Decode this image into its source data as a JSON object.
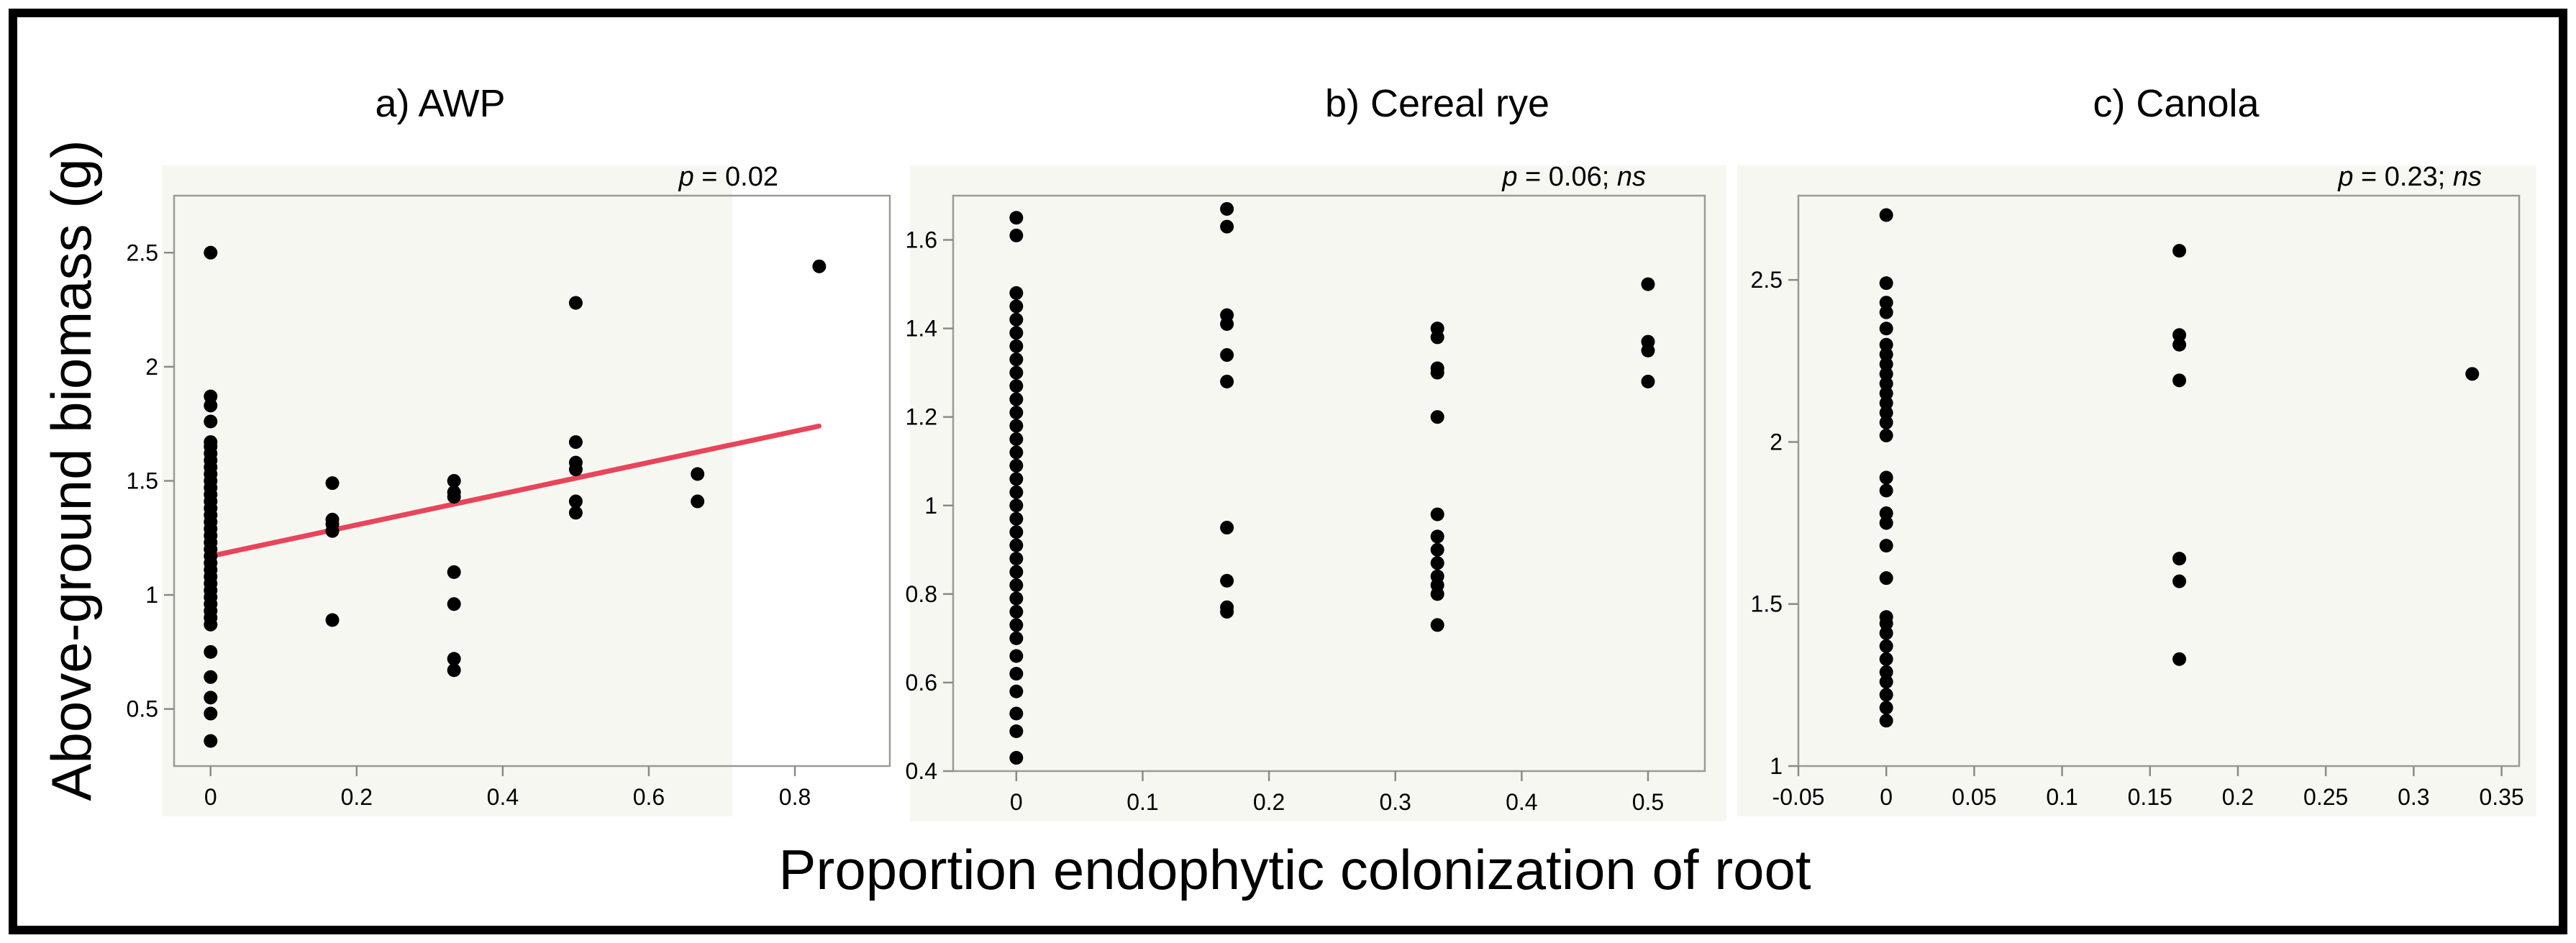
{
  "figure": {
    "ylabel": "Above-ground biomass (g)",
    "xlabel": "Proportion endophytic colonization of root"
  },
  "chart_data": [
    {
      "type": "scatter",
      "title": "a) AWP",
      "pvalue": {
        "p": "p",
        "rest": " = 0.02"
      },
      "xlim": [
        -0.05,
        0.93
      ],
      "ylim": [
        0.25,
        2.75
      ],
      "xticks": [
        0,
        0.2,
        0.4,
        0.6,
        0.8
      ],
      "yticks": [
        0.5,
        1,
        1.5,
        2,
        2.5
      ],
      "xticklabels": [
        "0",
        "0.2",
        "0.4",
        "0.6",
        "0.8"
      ],
      "yticklabels": [
        "0.5",
        "1",
        "1.5",
        "2",
        "2.5"
      ],
      "regression": {
        "x": [
          0,
          0.833
        ],
        "y": [
          1.17,
          1.74
        ],
        "color": "#e8455a"
      },
      "points": [
        [
          0,
          2.5
        ],
        [
          0,
          1.87
        ],
        [
          0,
          1.83
        ],
        [
          0,
          1.76
        ],
        [
          0,
          1.67
        ],
        [
          0,
          1.65
        ],
        [
          0,
          1.62
        ],
        [
          0,
          1.59
        ],
        [
          0,
          1.56
        ],
        [
          0,
          1.53
        ],
        [
          0,
          1.5
        ],
        [
          0,
          1.47
        ],
        [
          0,
          1.44
        ],
        [
          0,
          1.41
        ],
        [
          0,
          1.38
        ],
        [
          0,
          1.35
        ],
        [
          0,
          1.32
        ],
        [
          0,
          1.29
        ],
        [
          0,
          1.26
        ],
        [
          0,
          1.23
        ],
        [
          0,
          1.2
        ],
        [
          0,
          1.17
        ],
        [
          0,
          1.14
        ],
        [
          0,
          1.11
        ],
        [
          0,
          1.08
        ],
        [
          0,
          1.05
        ],
        [
          0,
          1.02
        ],
        [
          0,
          0.99
        ],
        [
          0,
          0.96
        ],
        [
          0,
          0.93
        ],
        [
          0,
          0.9
        ],
        [
          0,
          0.87
        ],
        [
          0,
          0.75
        ],
        [
          0,
          0.64
        ],
        [
          0,
          0.55
        ],
        [
          0,
          0.48
        ],
        [
          0,
          0.36
        ],
        [
          0.1667,
          1.49
        ],
        [
          0.1667,
          1.33
        ],
        [
          0.1667,
          1.31
        ],
        [
          0.1667,
          1.28
        ],
        [
          0.1667,
          0.89
        ],
        [
          0.3333,
          1.5
        ],
        [
          0.3333,
          1.45
        ],
        [
          0.3333,
          1.43
        ],
        [
          0.3333,
          1.1
        ],
        [
          0.3333,
          0.96
        ],
        [
          0.3333,
          0.72
        ],
        [
          0.3333,
          0.67
        ],
        [
          0.5,
          2.28
        ],
        [
          0.5,
          1.67
        ],
        [
          0.5,
          1.58
        ],
        [
          0.5,
          1.55
        ],
        [
          0.5,
          1.41
        ],
        [
          0.5,
          1.36
        ],
        [
          0.6667,
          1.53
        ],
        [
          0.6667,
          1.41
        ],
        [
          0.8333,
          2.44
        ]
      ]
    },
    {
      "type": "scatter",
      "title": "b) Cereal rye",
      "pvalue": {
        "p": "p",
        "rest": " = 0.06; ",
        "ns": "ns"
      },
      "xlim": [
        -0.05,
        0.545
      ],
      "ylim": [
        0.4,
        1.7
      ],
      "xticks": [
        0,
        0.1,
        0.2,
        0.3,
        0.4,
        0.5
      ],
      "yticks": [
        0.4,
        0.6,
        0.8,
        1,
        1.2,
        1.4,
        1.6
      ],
      "xticklabels": [
        "0",
        "0.1",
        "0.2",
        "0.3",
        "0.4",
        "0.5"
      ],
      "yticklabels": [
        "0.4",
        "0.6",
        "0.8",
        "1",
        "1.2",
        "1.4",
        "1.6"
      ],
      "points": [
        [
          0,
          1.65
        ],
        [
          0,
          1.61
        ],
        [
          0,
          1.48
        ],
        [
          0,
          1.45
        ],
        [
          0,
          1.42
        ],
        [
          0,
          1.39
        ],
        [
          0,
          1.36
        ],
        [
          0,
          1.33
        ],
        [
          0,
          1.3
        ],
        [
          0,
          1.27
        ],
        [
          0,
          1.24
        ],
        [
          0,
          1.21
        ],
        [
          0,
          1.18
        ],
        [
          0,
          1.15
        ],
        [
          0,
          1.12
        ],
        [
          0,
          1.09
        ],
        [
          0,
          1.06
        ],
        [
          0,
          1.03
        ],
        [
          0,
          1.0
        ],
        [
          0,
          0.97
        ],
        [
          0,
          0.94
        ],
        [
          0,
          0.91
        ],
        [
          0,
          0.88
        ],
        [
          0,
          0.85
        ],
        [
          0,
          0.82
        ],
        [
          0,
          0.79
        ],
        [
          0,
          0.76
        ],
        [
          0,
          0.73
        ],
        [
          0,
          0.7
        ],
        [
          0,
          0.66
        ],
        [
          0,
          0.62
        ],
        [
          0,
          0.58
        ],
        [
          0,
          0.53
        ],
        [
          0,
          0.49
        ],
        [
          0,
          0.43
        ],
        [
          0.1667,
          1.67
        ],
        [
          0.1667,
          1.63
        ],
        [
          0.1667,
          1.43
        ],
        [
          0.1667,
          1.41
        ],
        [
          0.1667,
          1.34
        ],
        [
          0.1667,
          1.28
        ],
        [
          0.1667,
          0.95
        ],
        [
          0.1667,
          0.83
        ],
        [
          0.1667,
          0.77
        ],
        [
          0.1667,
          0.76
        ],
        [
          0.3333,
          1.4
        ],
        [
          0.3333,
          1.38
        ],
        [
          0.3333,
          1.31
        ],
        [
          0.3333,
          1.3
        ],
        [
          0.3333,
          1.2
        ],
        [
          0.3333,
          0.98
        ],
        [
          0.3333,
          0.93
        ],
        [
          0.3333,
          0.9
        ],
        [
          0.3333,
          0.87
        ],
        [
          0.3333,
          0.84
        ],
        [
          0.3333,
          0.82
        ],
        [
          0.3333,
          0.8
        ],
        [
          0.3333,
          0.73
        ],
        [
          0.5,
          1.5
        ],
        [
          0.5,
          1.37
        ],
        [
          0.5,
          1.35
        ],
        [
          0.5,
          1.28
        ]
      ]
    },
    {
      "type": "scatter",
      "title": "c) Canola",
      "pvalue": {
        "p": "p",
        "rest": " = 0.23; ",
        "ns": "ns"
      },
      "xlim": [
        -0.05,
        0.36
      ],
      "ylim": [
        1.0,
        2.76
      ],
      "xticks": [
        -0.05,
        0,
        0.05,
        0.1,
        0.15,
        0.2,
        0.25,
        0.3,
        0.35
      ],
      "yticks": [
        1,
        1.5,
        2,
        2.5
      ],
      "xticklabels": [
        "-0.05",
        "0",
        "0.05",
        "0.1",
        "0.15",
        "0.2",
        "0.25",
        "0.3",
        "0.35"
      ],
      "yticklabels": [
        "1",
        "1.5",
        "2",
        "2.5"
      ],
      "points": [
        [
          0,
          2.7
        ],
        [
          0,
          2.49
        ],
        [
          0,
          2.43
        ],
        [
          0,
          2.4
        ],
        [
          0,
          2.35
        ],
        [
          0,
          2.3
        ],
        [
          0,
          2.27
        ],
        [
          0,
          2.24
        ],
        [
          0,
          2.21
        ],
        [
          0,
          2.18
        ],
        [
          0,
          2.15
        ],
        [
          0,
          2.12
        ],
        [
          0,
          2.09
        ],
        [
          0,
          2.06
        ],
        [
          0,
          2.02
        ],
        [
          0,
          1.89
        ],
        [
          0,
          1.85
        ],
        [
          0,
          1.78
        ],
        [
          0,
          1.75
        ],
        [
          0,
          1.68
        ],
        [
          0,
          1.58
        ],
        [
          0,
          1.46
        ],
        [
          0,
          1.44
        ],
        [
          0,
          1.41
        ],
        [
          0,
          1.37
        ],
        [
          0,
          1.33
        ],
        [
          0,
          1.29
        ],
        [
          0,
          1.26
        ],
        [
          0,
          1.22
        ],
        [
          0,
          1.18
        ],
        [
          0,
          1.14
        ],
        [
          0.1667,
          2.59
        ],
        [
          0.1667,
          2.33
        ],
        [
          0.1667,
          2.3
        ],
        [
          0.1667,
          2.19
        ],
        [
          0.1667,
          1.64
        ],
        [
          0.1667,
          1.57
        ],
        [
          0.1667,
          1.33
        ],
        [
          0.3333,
          2.21
        ]
      ]
    }
  ]
}
